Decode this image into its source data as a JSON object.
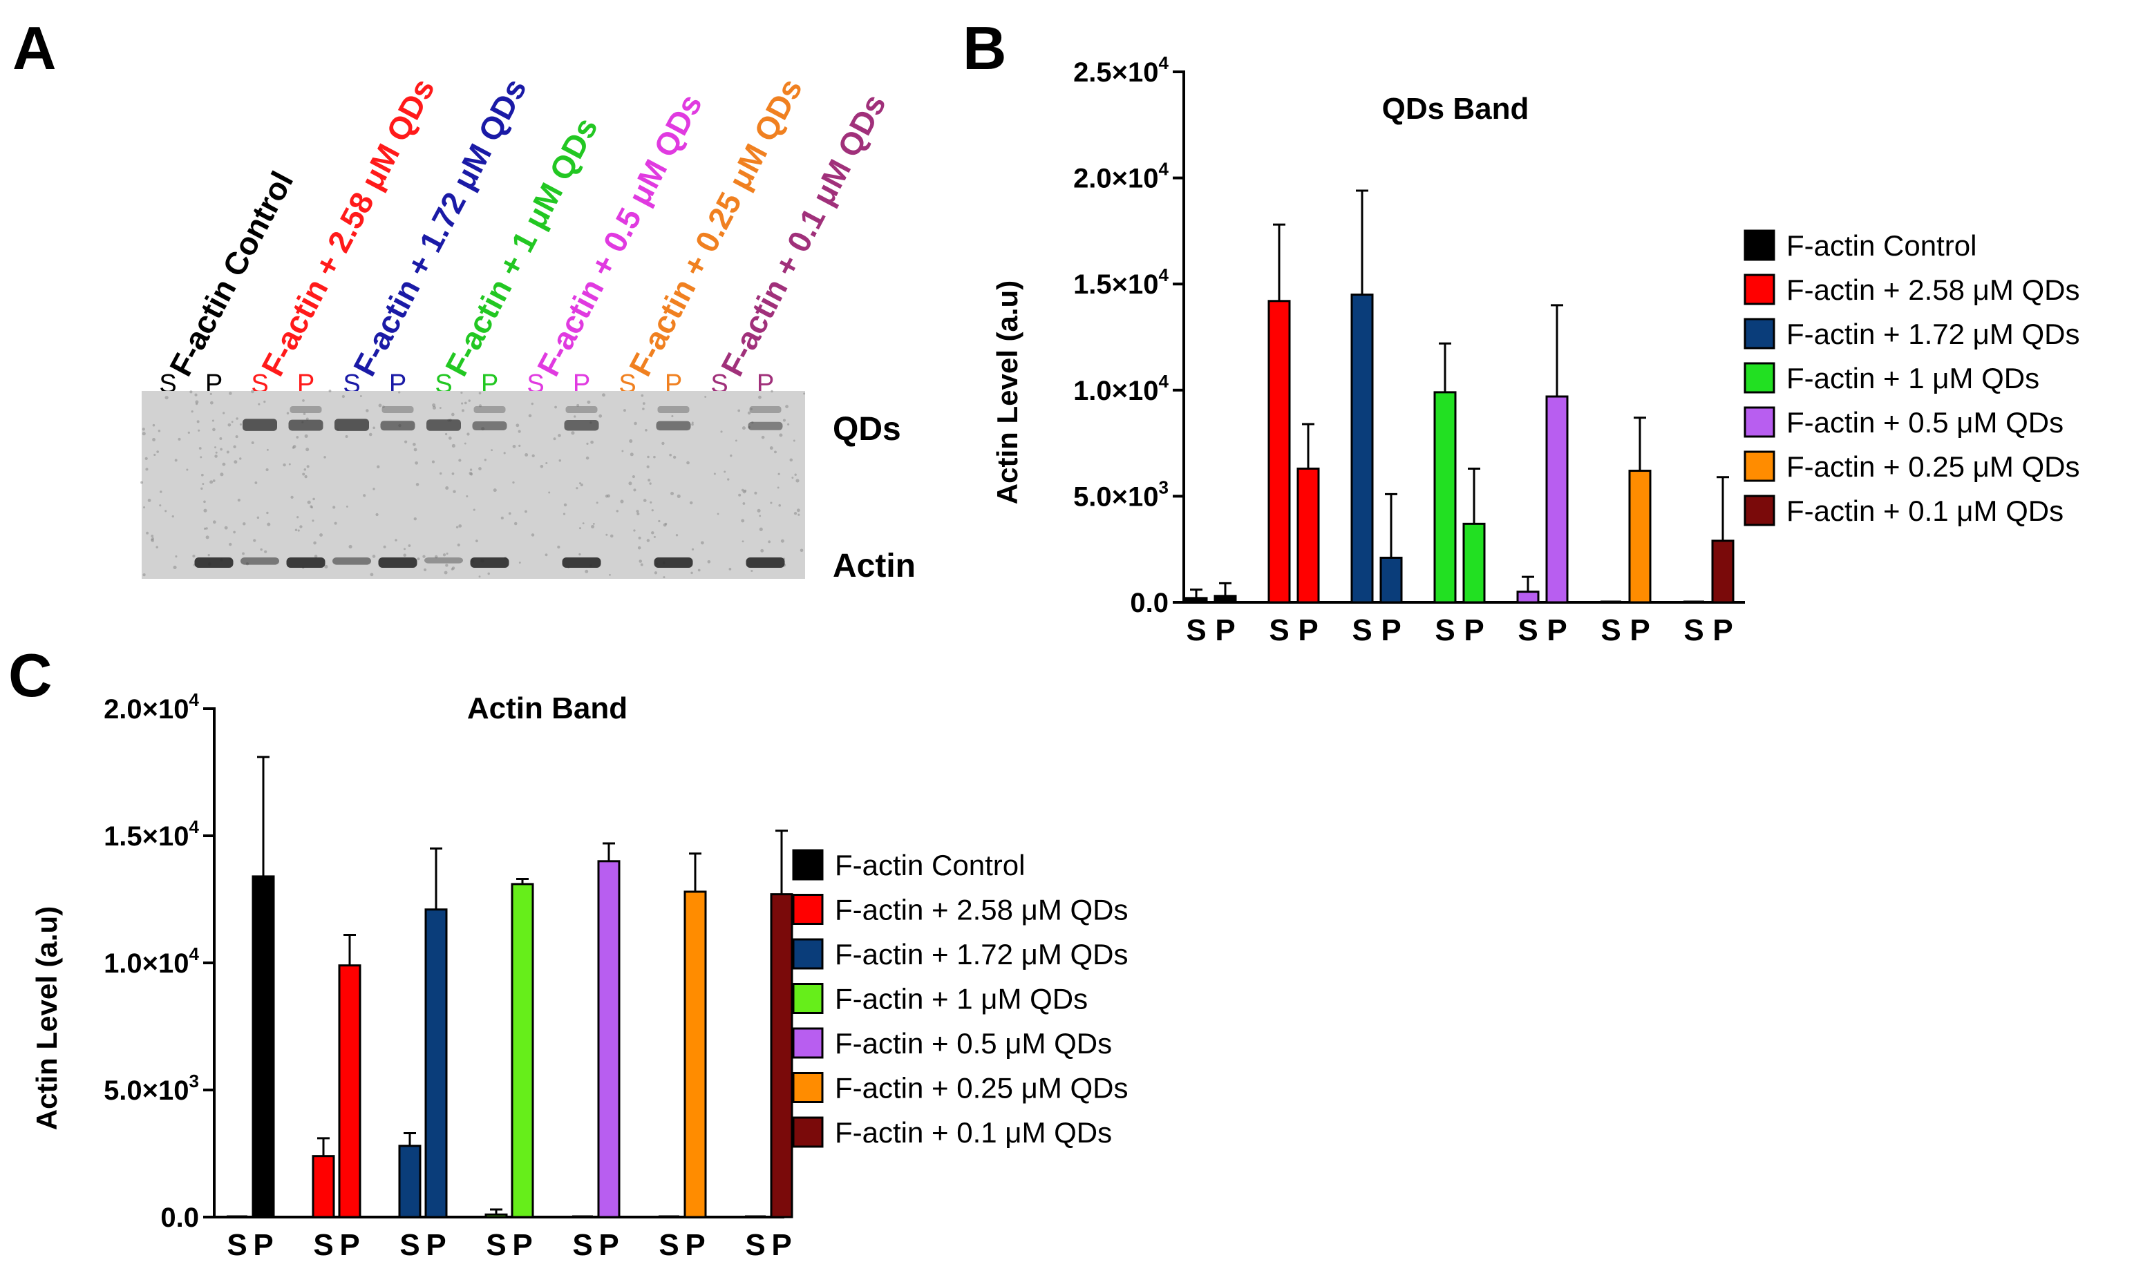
{
  "panels": {
    "a": "A",
    "b": "B",
    "c": "C"
  },
  "gel": {
    "lane_titles": [
      {
        "text": "F-actin Control",
        "color": "#000000"
      },
      {
        "text": "F-actin + 2.58 μM QDs",
        "color": "#ff1a1a"
      },
      {
        "text": "F-actin + 1.72 μM QDs",
        "color": "#1a1aa6"
      },
      {
        "text": "F-actin + 1 μM QDs",
        "color": "#22c722"
      },
      {
        "text": "F-actin + 0.5 μM QDs",
        "color": "#e03ae0"
      },
      {
        "text": "F-actin + 0.25 μM QDs",
        "color": "#f08020"
      },
      {
        "text": "F-actin + 0.1 μM QDs",
        "color": "#a0307a"
      }
    ],
    "lanes": [
      {
        "label": "S",
        "color": "#000000"
      },
      {
        "label": "P",
        "color": "#000000"
      },
      {
        "label": "S",
        "color": "#ff1a1a"
      },
      {
        "label": "P",
        "color": "#ff1a1a"
      },
      {
        "label": "S",
        "color": "#1a1aa6"
      },
      {
        "label": "P",
        "color": "#1a1aa6"
      },
      {
        "label": "S",
        "color": "#22c722"
      },
      {
        "label": "P",
        "color": "#22c722"
      },
      {
        "label": "S",
        "color": "#e03ae0"
      },
      {
        "label": "P",
        "color": "#e03ae0"
      },
      {
        "label": "S",
        "color": "#f08020"
      },
      {
        "label": "P",
        "color": "#f08020"
      },
      {
        "label": "S",
        "color": "#a0307a"
      },
      {
        "label": "P",
        "color": "#a0307a"
      }
    ],
    "qds_band": [
      0,
      0,
      0.95,
      0.8,
      0.95,
      0.6,
      0.85,
      0.5,
      0,
      0.75,
      0,
      0.55,
      0,
      0.4
    ],
    "actin_band": [
      0,
      1.0,
      0.45,
      1.0,
      0.45,
      1.0,
      0.2,
      1.0,
      0,
      1.0,
      0,
      1.0,
      0,
      1.0
    ],
    "band_labels": {
      "qds": "QDs",
      "actin": "Actin"
    }
  },
  "chart_data": [
    {
      "id": "B",
      "type": "bar",
      "title": "QDs Band",
      "ylabel": "Actin Level (a.u)",
      "xlabel": "",
      "ylim": [
        0,
        25000
      ],
      "yticks": [
        {
          "value": 0,
          "label": "0.0",
          "sup": ""
        },
        {
          "value": 5000,
          "label": "5.0×10",
          "sup": "3"
        },
        {
          "value": 10000,
          "label": "1.0×10",
          "sup": "4"
        },
        {
          "value": 15000,
          "label": "1.5×10",
          "sup": "4"
        },
        {
          "value": 20000,
          "label": "2.0×10",
          "sup": "4"
        },
        {
          "value": 25000,
          "label": "2.5×10",
          "sup": "4"
        }
      ],
      "categories": [
        "S",
        "P"
      ],
      "series": [
        {
          "name": "F-actin Control",
          "color": "#000000",
          "values": [
            200,
            300
          ],
          "errors": [
            400,
            600
          ]
        },
        {
          "name": "F-actin + 2.58 μM QDs",
          "color": "#ff0000",
          "values": [
            14200,
            6300
          ],
          "errors": [
            3600,
            2100
          ]
        },
        {
          "name": "F-actin + 1.72 μM QDs",
          "color": "#0a3d7a",
          "values": [
            14500,
            2100
          ],
          "errors": [
            4900,
            3000
          ]
        },
        {
          "name": "F-actin + 1 μM QDs",
          "color": "#22e022",
          "values": [
            9900,
            3700
          ],
          "errors": [
            2300,
            2600
          ]
        },
        {
          "name": "F-actin + 0.5 μM QDs",
          "color": "#b85ef0",
          "values": [
            500,
            9700
          ],
          "errors": [
            700,
            4300
          ]
        },
        {
          "name": "F-actin + 0.25 μM QDs",
          "color": "#ff8c00",
          "values": [
            0,
            6200
          ],
          "errors": [
            0,
            2500
          ]
        },
        {
          "name": "F-actin + 0.1 μM QDs",
          "color": "#7a0a0a",
          "values": [
            0,
            2900
          ],
          "errors": [
            0,
            3000
          ]
        }
      ]
    },
    {
      "id": "C",
      "type": "bar",
      "title": "Actin Band",
      "ylabel": "Actin Level (a.u)",
      "xlabel": "",
      "ylim": [
        0,
        20000
      ],
      "yticks": [
        {
          "value": 0,
          "label": "0.0",
          "sup": ""
        },
        {
          "value": 5000,
          "label": "5.0×10",
          "sup": "3"
        },
        {
          "value": 10000,
          "label": "1.0×10",
          "sup": "4"
        },
        {
          "value": 15000,
          "label": "1.5×10",
          "sup": "4"
        },
        {
          "value": 20000,
          "label": "2.0×10",
          "sup": "4"
        }
      ],
      "categories": [
        "S",
        "P"
      ],
      "series": [
        {
          "name": "F-actin Control",
          "color": "#000000",
          "values": [
            0,
            13400
          ],
          "errors": [
            0,
            4700
          ]
        },
        {
          "name": "F-actin + 2.58 μM QDs",
          "color": "#ff0000",
          "values": [
            2400,
            9900
          ],
          "errors": [
            700,
            1200
          ]
        },
        {
          "name": "F-actin + 1.72 μM QDs",
          "color": "#0a3d7a",
          "values": [
            2800,
            12100
          ],
          "errors": [
            500,
            2400
          ]
        },
        {
          "name": "F-actin + 1 μM QDs",
          "color": "#66ee1a",
          "values": [
            100,
            13100
          ],
          "errors": [
            200,
            200
          ]
        },
        {
          "name": "F-actin + 0.5 μM QDs",
          "color": "#b85ef0",
          "values": [
            0,
            14000
          ],
          "errors": [
            0,
            700
          ]
        },
        {
          "name": "F-actin + 0.25 μM QDs",
          "color": "#ff8c00",
          "values": [
            0,
            12800
          ],
          "errors": [
            0,
            1500
          ]
        },
        {
          "name": "F-actin + 0.1 μM QDs",
          "color": "#7a0a0a",
          "values": [
            0,
            12700
          ],
          "errors": [
            0,
            2500
          ]
        }
      ]
    }
  ]
}
